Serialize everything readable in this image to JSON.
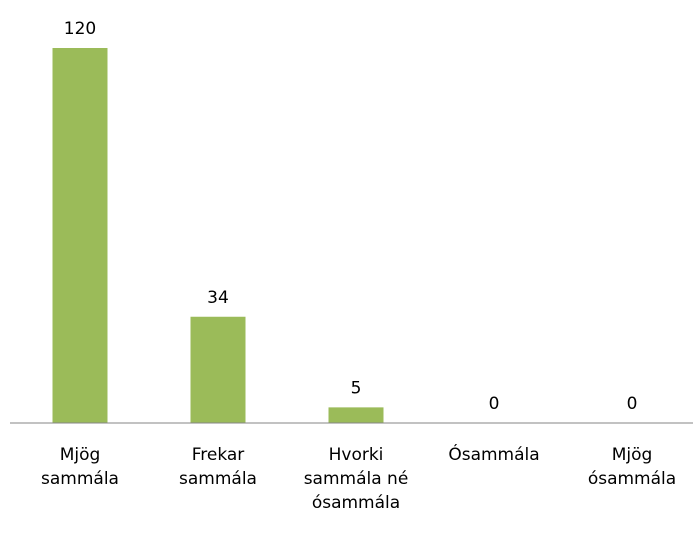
{
  "chart_data": {
    "type": "bar",
    "categories": [
      "Mjög sammála",
      "Frekar sammála",
      "Hvorki sammála né ósammála",
      "Ósammála",
      "Mjög ósammála"
    ],
    "values": [
      120,
      34,
      5,
      0,
      0
    ],
    "color": "#9bbb59"
  }
}
